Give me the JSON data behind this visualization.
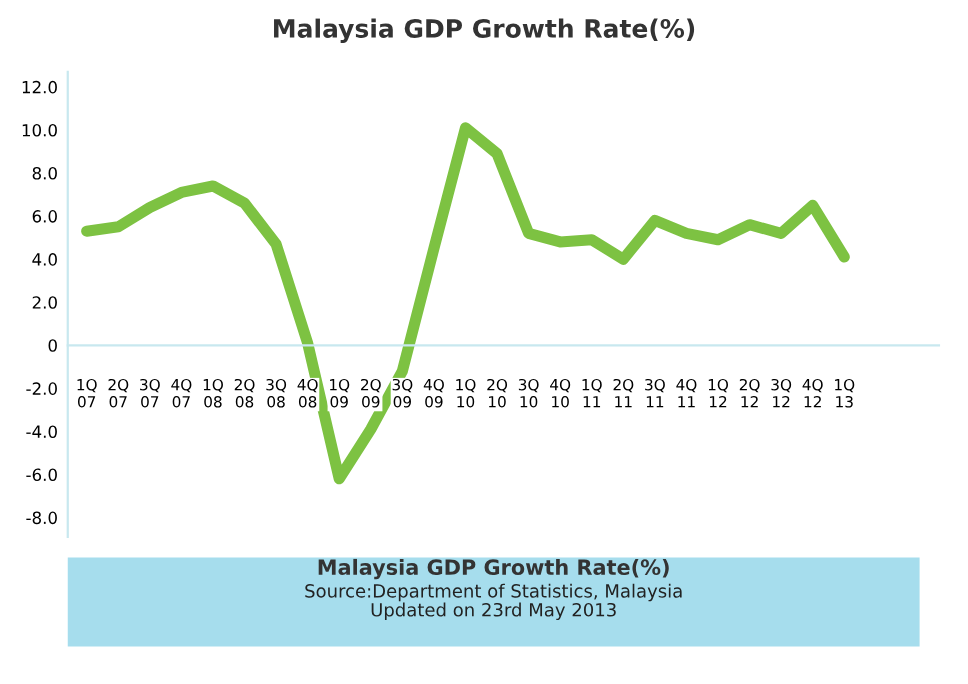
{
  "chart_data": {
    "type": "line",
    "title": "Malaysia GDP Growth Rate(%)",
    "categories": [
      "1Q\n07",
      "2Q\n07",
      "3Q\n07",
      "4Q\n07",
      "1Q\n08",
      "2Q\n08",
      "3Q\n08",
      "4Q\n08",
      "1Q\n09",
      "2Q\n09",
      "3Q\n09",
      "4Q\n09",
      "1Q\n10",
      "2Q\n10",
      "3Q\n10",
      "4Q\n10",
      "1Q\n11",
      "2Q\n11",
      "3Q\n11",
      "4Q\n11",
      "1Q\n12",
      "2Q\n12",
      "3Q\n12",
      "4Q\n12",
      "1Q\n13"
    ],
    "series": [
      {
        "color": "#7dc242",
        "values": [
          5.3,
          5.5,
          6.4,
          7.1,
          7.4,
          6.6,
          4.7,
          0.1,
          -6.2,
          -3.9,
          -1.2,
          4.5,
          10.1,
          8.9,
          5.2,
          4.8,
          4.9,
          4.0,
          5.8,
          5.2,
          4.9,
          5.6,
          5.2,
          6.5,
          4.1
        ]
      }
    ],
    "ylim": [
      -8.9,
      12.7
    ],
    "yticks": [
      {
        "value": 12,
        "label": "12.0"
      },
      {
        "value": 10,
        "label": "10.0"
      },
      {
        "value": 8,
        "label": "8.0"
      },
      {
        "value": 6,
        "label": "6.0"
      },
      {
        "value": 4,
        "label": "4.0"
      },
      {
        "value": 2,
        "label": "2.0"
      },
      0,
      {
        "value": -2,
        "label": "-2.0"
      },
      {
        "value": -4,
        "label": "-4.0"
      },
      {
        "value": -6,
        "label": "-6.0"
      },
      {
        "value": -8,
        "label": "-8.0"
      }
    ],
    "grid": false,
    "legend": false,
    "marker": "none",
    "line_style": "solid",
    "annotations": [
      "Malaysia GDP Growth Rate(%)\nSource:Department of Statistics, Malaysia\nUpdated on 23rd May 2013"
    ]
  }
}
